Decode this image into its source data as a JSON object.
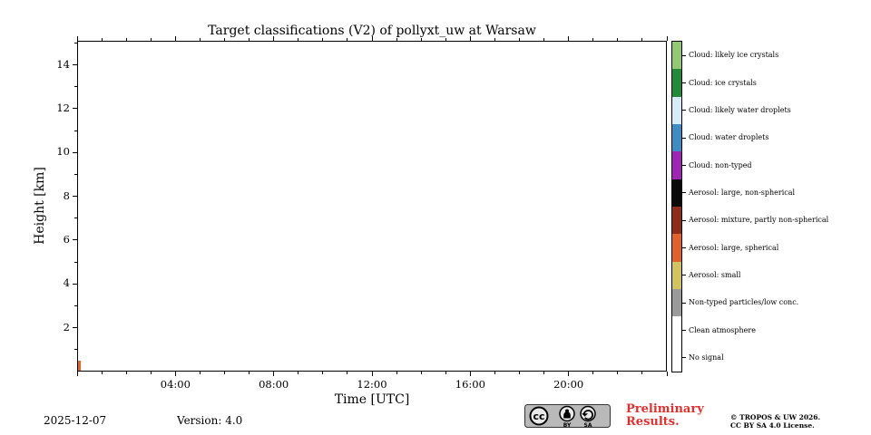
{
  "chart_data": {
    "type": "heatmap",
    "title": "Target classifications (V2) of pollyxt_uw at Warsaw",
    "xlabel": "Time [UTC]",
    "ylabel": "Height [km]",
    "grid": false,
    "legend_position": "right",
    "x_axis": {
      "unit": "hours UTC",
      "min": 0,
      "max": 24,
      "major_tick_hours": [
        4,
        8,
        12,
        16,
        20
      ],
      "major_tick_labels": [
        "04:00",
        "08:00",
        "12:00",
        "16:00",
        "20:00"
      ],
      "minor_tick_step_hours": 1
    },
    "y_axis": {
      "unit": "km",
      "min": 0,
      "max": 15.1,
      "major_ticks": [
        2,
        4,
        6,
        8,
        10,
        12,
        14
      ],
      "minor_tick_step": 1
    },
    "categories": [
      {
        "label": "Cloud: likely ice crystals",
        "color": "#94c973"
      },
      {
        "label": "Cloud: ice crystals",
        "color": "#228b3b"
      },
      {
        "label": "Cloud: likely water droplets",
        "color": "#d6ecfb"
      },
      {
        "label": "Cloud: water droplets",
        "color": "#3f8cc4"
      },
      {
        "label": "Cloud: non-typed",
        "color": "#9f25b5"
      },
      {
        "label": "Aerosol: large, non-spherical",
        "color": "#0a0a0a"
      },
      {
        "label": "Aerosol: mixture, partly non-spherical",
        "color": "#8f2d1d"
      },
      {
        "label": "Aerosol: large, spherical",
        "color": "#e0622c"
      },
      {
        "label": "Aerosol: small",
        "color": "#d1c35e"
      },
      {
        "label": "Non-typed particles/low conc.",
        "color": "#9b9b9b"
      },
      {
        "label": "Clean atmosphere",
        "color": "#ffffff"
      },
      {
        "label": "No signal",
        "color": "#ffffff"
      }
    ],
    "values": [],
    "artifacts": [
      {
        "time_hours": 0.05,
        "height_km_from": 0,
        "height_km_to": 0.5,
        "color": "#e0622c"
      }
    ]
  },
  "footer": {
    "date": "2025-12-07",
    "version": "Version: 4.0",
    "preliminary": "Preliminary Results.",
    "preliminary_color": "#e03030",
    "copyright_line1": "© TROPOS & UW 2026.",
    "copyright_line2": "CC BY SA 4.0 License.",
    "badge": {
      "cc": "cc",
      "by": "BY",
      "sa": "SA"
    }
  }
}
